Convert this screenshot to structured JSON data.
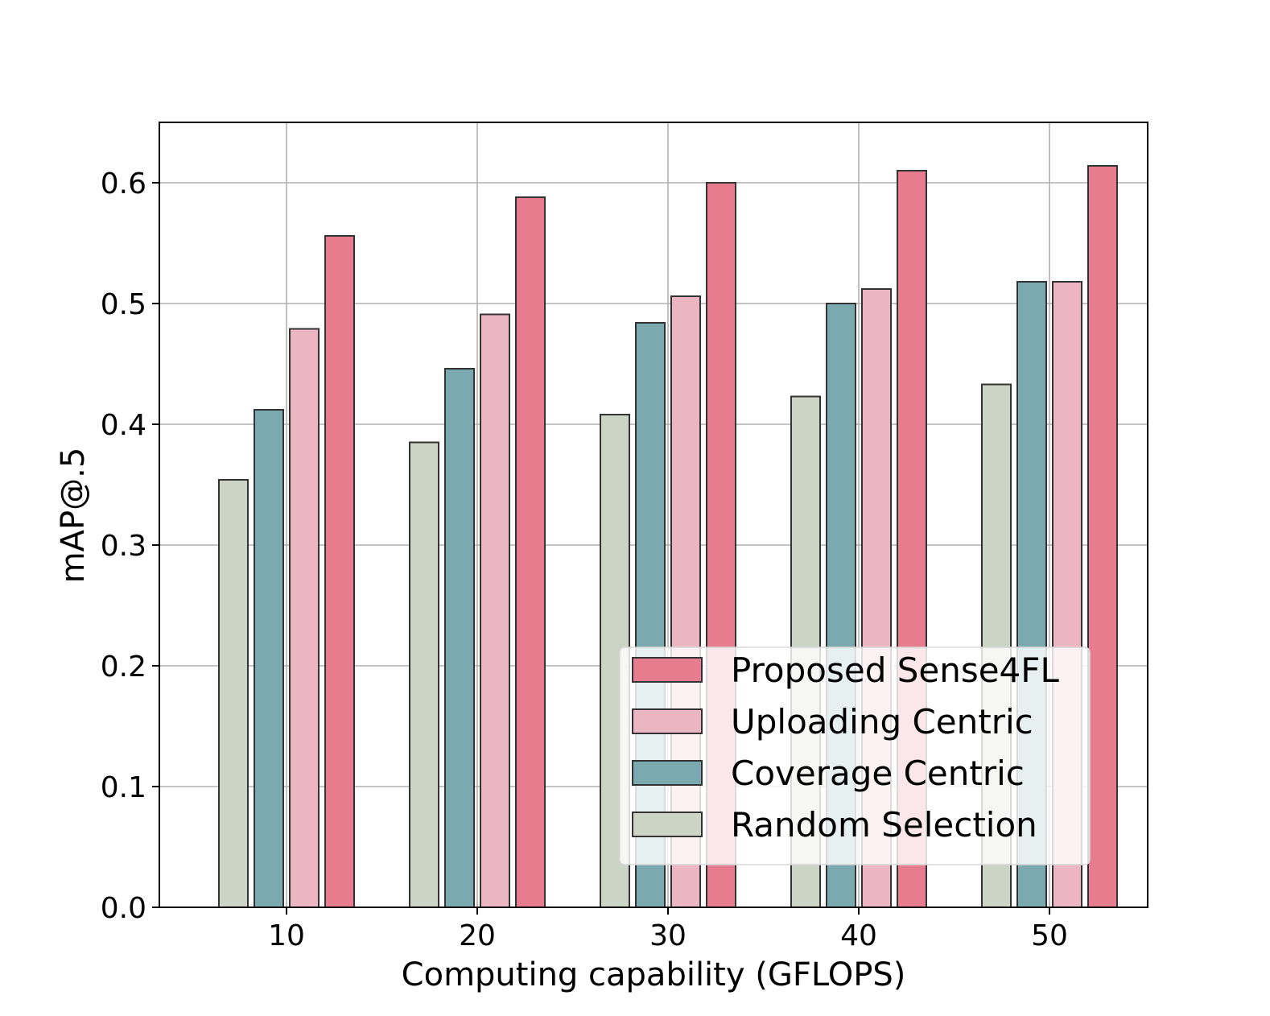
{
  "chart_data": {
    "type": "bar",
    "title": "",
    "xlabel": "Computing capability (GFLOPS)",
    "ylabel": "mAP@.5",
    "categories": [
      "10",
      "20",
      "30",
      "40",
      "50"
    ],
    "ylim": [
      0,
      0.65
    ],
    "yticks": [
      "0.0",
      "0.1",
      "0.2",
      "0.3",
      "0.4",
      "0.5",
      "0.6"
    ],
    "grid": true,
    "legend_position": "lower-right",
    "series": [
      {
        "name": "Random Selection",
        "color": "#ccd4c6",
        "values": [
          0.354,
          0.385,
          0.408,
          0.423,
          0.433
        ]
      },
      {
        "name": "Coverage Centric",
        "color": "#7aaab0",
        "values": [
          0.412,
          0.446,
          0.484,
          0.5,
          0.518
        ]
      },
      {
        "name": "Uploading Centric",
        "color": "#ecb5c2",
        "values": [
          0.479,
          0.491,
          0.506,
          0.512,
          0.518
        ]
      },
      {
        "name": "Proposed Sense4FL",
        "color": "#e67c8e",
        "values": [
          0.556,
          0.588,
          0.6,
          0.61,
          0.614
        ]
      }
    ],
    "legend_order": [
      "Proposed Sense4FL",
      "Uploading Centric",
      "Coverage Centric",
      "Random Selection"
    ]
  }
}
